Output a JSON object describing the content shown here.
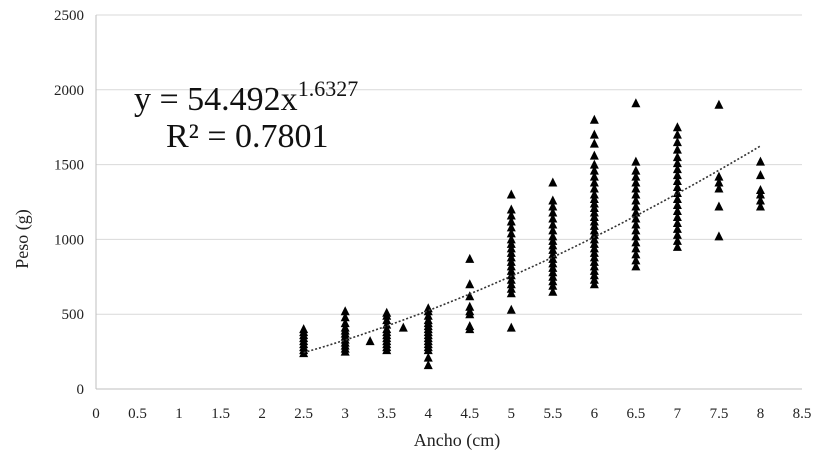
{
  "chart_data": {
    "type": "scatter",
    "xlabel": "Ancho (cm)",
    "ylabel": "Peso (g)",
    "xlim": [
      0,
      8.5
    ],
    "ylim": [
      0,
      2500
    ],
    "xticks": [
      "0",
      "0.5",
      "1",
      "1.5",
      "2",
      "2.5",
      "3",
      "3.5",
      "4",
      "4.5",
      "5",
      "5.5",
      "6",
      "6.5",
      "7",
      "7.5",
      "8",
      "8.5"
    ],
    "yticks": [
      "0",
      "500",
      "1000",
      "1500",
      "2000",
      "2500"
    ],
    "grid": "horizontal",
    "marker": "triangle",
    "marker_color": "#000000",
    "equation": {
      "prefix": "y = 54.492x",
      "exponent": "1.6327",
      "r2": "R² = 0.7801"
    },
    "trendline": {
      "type": "power",
      "a": 54.492,
      "b": 1.6327,
      "x_range": [
        2.5,
        8
      ],
      "style": "dotted"
    },
    "series": [
      {
        "points": [
          [
            2.5,
            240
          ],
          [
            2.5,
            260
          ],
          [
            2.5,
            280
          ],
          [
            2.5,
            300
          ],
          [
            2.5,
            320
          ],
          [
            2.5,
            340
          ],
          [
            2.5,
            360
          ],
          [
            2.5,
            380
          ],
          [
            2.5,
            400
          ],
          [
            3,
            250
          ],
          [
            3,
            270
          ],
          [
            3,
            290
          ],
          [
            3,
            310
          ],
          [
            3,
            330
          ],
          [
            3,
            350
          ],
          [
            3,
            370
          ],
          [
            3,
            390
          ],
          [
            3,
            410
          ],
          [
            3,
            440
          ],
          [
            3,
            480
          ],
          [
            3,
            520
          ],
          [
            3.3,
            320
          ],
          [
            3.7,
            410
          ],
          [
            3.5,
            260
          ],
          [
            3.5,
            280
          ],
          [
            3.5,
            300
          ],
          [
            3.5,
            320
          ],
          [
            3.5,
            340
          ],
          [
            3.5,
            360
          ],
          [
            3.5,
            380
          ],
          [
            3.5,
            400
          ],
          [
            3.5,
            430
          ],
          [
            3.5,
            460
          ],
          [
            3.5,
            490
          ],
          [
            3.5,
            510
          ],
          [
            4,
            160
          ],
          [
            4,
            210
          ],
          [
            4,
            260
          ],
          [
            4,
            280
          ],
          [
            4,
            300
          ],
          [
            4,
            320
          ],
          [
            4,
            340
          ],
          [
            4,
            360
          ],
          [
            4,
            380
          ],
          [
            4,
            400
          ],
          [
            4,
            420
          ],
          [
            4,
            440
          ],
          [
            4,
            460
          ],
          [
            4,
            490
          ],
          [
            4,
            520
          ],
          [
            4,
            540
          ],
          [
            4.5,
            400
          ],
          [
            4.5,
            420
          ],
          [
            4.5,
            500
          ],
          [
            4.5,
            520
          ],
          [
            4.5,
            550
          ],
          [
            4.5,
            620
          ],
          [
            4.5,
            700
          ],
          [
            4.5,
            870
          ],
          [
            5,
            410
          ],
          [
            5,
            530
          ],
          [
            5,
            640
          ],
          [
            5,
            670
          ],
          [
            5,
            700
          ],
          [
            5,
            730
          ],
          [
            5,
            760
          ],
          [
            5,
            790
          ],
          [
            5,
            820
          ],
          [
            5,
            850
          ],
          [
            5,
            880
          ],
          [
            5,
            910
          ],
          [
            5,
            940
          ],
          [
            5,
            970
          ],
          [
            5,
            1000
          ],
          [
            5,
            1040
          ],
          [
            5,
            1080
          ],
          [
            5,
            1120
          ],
          [
            5,
            1160
          ],
          [
            5,
            1200
          ],
          [
            5,
            1300
          ],
          [
            5.5,
            650
          ],
          [
            5.5,
            690
          ],
          [
            5.5,
            720
          ],
          [
            5.5,
            750
          ],
          [
            5.5,
            780
          ],
          [
            5.5,
            810
          ],
          [
            5.5,
            840
          ],
          [
            5.5,
            870
          ],
          [
            5.5,
            900
          ],
          [
            5.5,
            930
          ],
          [
            5.5,
            960
          ],
          [
            5.5,
            990
          ],
          [
            5.5,
            1020
          ],
          [
            5.5,
            1060
          ],
          [
            5.5,
            1100
          ],
          [
            5.5,
            1140
          ],
          [
            5.5,
            1180
          ],
          [
            5.5,
            1220
          ],
          [
            5.5,
            1260
          ],
          [
            5.5,
            1380
          ],
          [
            6,
            700
          ],
          [
            6,
            730
          ],
          [
            6,
            760
          ],
          [
            6,
            790
          ],
          [
            6,
            820
          ],
          [
            6,
            850
          ],
          [
            6,
            880
          ],
          [
            6,
            910
          ],
          [
            6,
            940
          ],
          [
            6,
            970
          ],
          [
            6,
            1000
          ],
          [
            6,
            1030
          ],
          [
            6,
            1060
          ],
          [
            6,
            1090
          ],
          [
            6,
            1120
          ],
          [
            6,
            1150
          ],
          [
            6,
            1180
          ],
          [
            6,
            1210
          ],
          [
            6,
            1240
          ],
          [
            6,
            1270
          ],
          [
            6,
            1300
          ],
          [
            6,
            1340
          ],
          [
            6,
            1380
          ],
          [
            6,
            1420
          ],
          [
            6,
            1460
          ],
          [
            6,
            1500
          ],
          [
            6,
            1560
          ],
          [
            6,
            1640
          ],
          [
            6,
            1700
          ],
          [
            6,
            1800
          ],
          [
            6.5,
            820
          ],
          [
            6.5,
            860
          ],
          [
            6.5,
            900
          ],
          [
            6.5,
            940
          ],
          [
            6.5,
            980
          ],
          [
            6.5,
            1020
          ],
          [
            6.5,
            1060
          ],
          [
            6.5,
            1100
          ],
          [
            6.5,
            1140
          ],
          [
            6.5,
            1180
          ],
          [
            6.5,
            1220
          ],
          [
            6.5,
            1260
          ],
          [
            6.5,
            1300
          ],
          [
            6.5,
            1340
          ],
          [
            6.5,
            1380
          ],
          [
            6.5,
            1420
          ],
          [
            6.5,
            1460
          ],
          [
            6.5,
            1520
          ],
          [
            6.5,
            1910
          ],
          [
            7,
            950
          ],
          [
            7,
            990
          ],
          [
            7,
            1030
          ],
          [
            7,
            1070
          ],
          [
            7,
            1110
          ],
          [
            7,
            1150
          ],
          [
            7,
            1190
          ],
          [
            7,
            1230
          ],
          [
            7,
            1270
          ],
          [
            7,
            1310
          ],
          [
            7,
            1350
          ],
          [
            7,
            1390
          ],
          [
            7,
            1430
          ],
          [
            7,
            1470
          ],
          [
            7,
            1510
          ],
          [
            7,
            1550
          ],
          [
            7,
            1600
          ],
          [
            7,
            1650
          ],
          [
            7,
            1700
          ],
          [
            7,
            1750
          ],
          [
            7.5,
            1020
          ],
          [
            7.5,
            1220
          ],
          [
            7.5,
            1340
          ],
          [
            7.5,
            1380
          ],
          [
            7.5,
            1420
          ],
          [
            7.5,
            1900
          ],
          [
            8,
            1220
          ],
          [
            8,
            1260
          ],
          [
            8,
            1300
          ],
          [
            8,
            1330
          ],
          [
            8,
            1430
          ],
          [
            8,
            1520
          ]
        ]
      }
    ]
  }
}
